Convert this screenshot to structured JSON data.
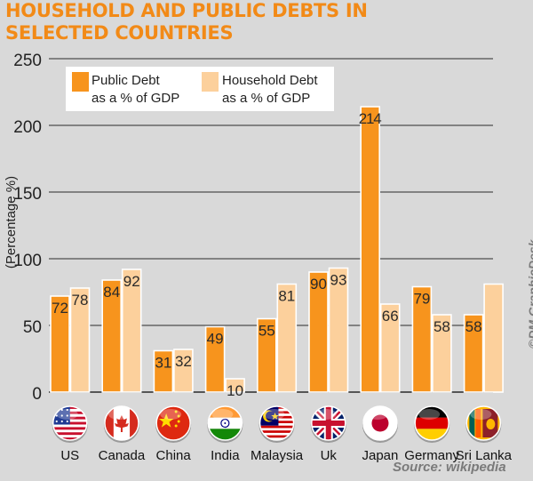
{
  "chart_data": {
    "type": "bar",
    "title_lines": [
      "HOUSEHOLD AND PUBLIC DEBTS IN",
      "SELECTED COUNTRIES"
    ],
    "ylabel": "(Percentage %)",
    "ylim": [
      0,
      250
    ],
    "yticks": [
      0,
      50,
      100,
      150,
      200,
      250
    ],
    "grid": true,
    "legend_position": "top-left",
    "categories": [
      "US",
      "Canada",
      "China",
      "India",
      "Malaysia",
      "Uk",
      "Japan",
      "Germany",
      "Sri Lanka"
    ],
    "flag_icons": [
      "us-flag-icon",
      "canada-flag-icon",
      "china-flag-icon",
      "india-flag-icon",
      "malaysia-flag-icon",
      "uk-flag-icon",
      "japan-flag-icon",
      "germany-flag-icon",
      "sri-lanka-flag-icon"
    ],
    "series": [
      {
        "name_lines": [
          "Public Debt",
          "as a % of GDP"
        ],
        "color": "#f7941d",
        "values": [
          72,
          84,
          31,
          49,
          55,
          90,
          214,
          79,
          58
        ],
        "labels": [
          "72",
          "84",
          "31",
          "49",
          "55",
          "90",
          "214",
          "79",
          "58"
        ]
      },
      {
        "name_lines": [
          "Household Debt",
          "as a % of GDP"
        ],
        "color": "#fcd09c",
        "values": [
          78,
          92,
          32,
          10,
          81,
          93,
          66,
          58,
          81
        ],
        "labels": [
          "78",
          "92",
          "32",
          "10",
          "81",
          "93",
          "66",
          "58",
          ""
        ]
      }
    ]
  },
  "footer": {
    "source": "Source: wikipedia",
    "watermark": "©DM GraphicDesk"
  }
}
